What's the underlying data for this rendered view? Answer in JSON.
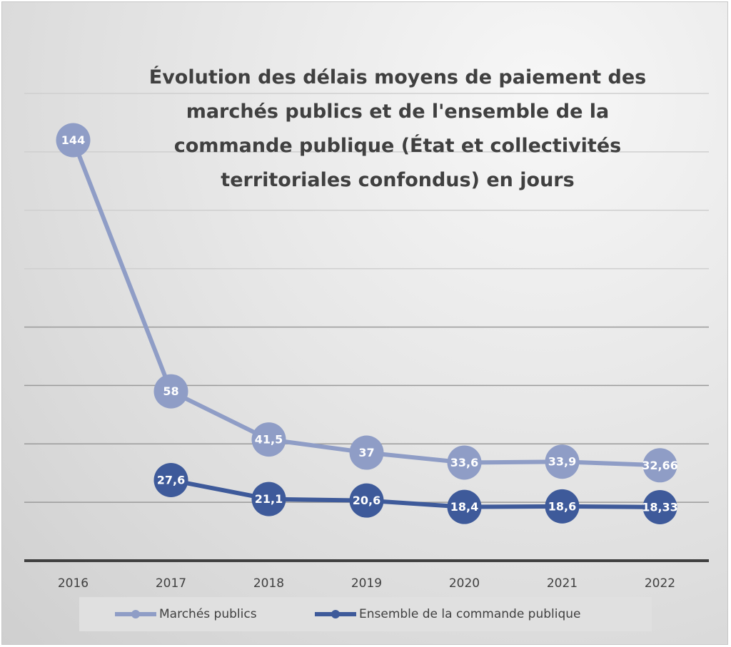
{
  "chart_data": {
    "type": "line",
    "title": "Évolution des délais moyens de paiement des marchés publics et de l'ensemble de la commande publique (État et collectivités territoriales confondus) en jours",
    "title_lines": [
      "Évolution des délais moyens de paiement des",
      "marchés publics et de l'ensemble de la",
      "commande publique (État et collectivités",
      "territoriales confondus) en jours"
    ],
    "xlabel": "",
    "ylabel": "",
    "x": [
      "2016",
      "2017",
      "2018",
      "2019",
      "2020",
      "2021",
      "2022"
    ],
    "ylim": [
      0,
      160
    ],
    "y_gridlines": [
      20,
      40,
      60,
      80,
      100,
      120,
      140,
      160
    ],
    "y_tick_labels_visible": false,
    "grid": true,
    "legend_position": "bottom",
    "series": [
      {
        "name": "Marchés publics",
        "color": "#8f9dc6",
        "values": [
          144,
          58,
          41.5,
          37,
          33.6,
          33.9,
          32.66
        ],
        "labels": [
          "144",
          "58",
          "41,5",
          "37",
          "33,6",
          "33,9",
          "32,66"
        ]
      },
      {
        "name": "Ensemble de la commande publique",
        "color": "#3e5a9a",
        "values": [
          null,
          27.6,
          21.1,
          20.6,
          18.4,
          18.6,
          18.33
        ],
        "labels": [
          null,
          "27,6",
          "21,1",
          "20,6",
          "18,4",
          "18,6",
          "18,33"
        ]
      }
    ]
  }
}
